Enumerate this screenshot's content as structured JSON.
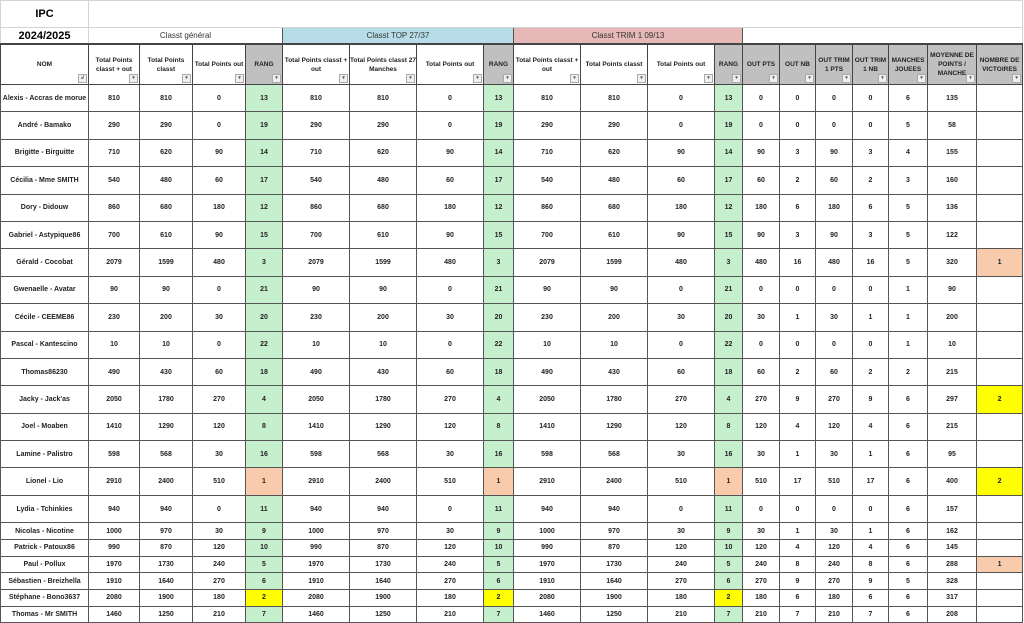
{
  "title": "IPC",
  "season": "2024/2025",
  "groups": {
    "general": "Classt général",
    "top": "Classt TOP 27/37",
    "trim": "Classt TRIM 1 09/13"
  },
  "colors": {
    "top_group": "#b7dee8",
    "trim_group": "#e6b8b7",
    "rang_cell": "#c6efce",
    "rank_1": "#f8cbad",
    "rank_2": "#ffff00",
    "header_gray": "#c0c0c0"
  },
  "headers": [
    "NOM",
    "Total Points classt + out",
    "Total Points classt",
    "Total Points out",
    "RANG",
    "Total Points classt + out",
    "Total Points classt 27 Manches",
    "Total Points out",
    "RANG",
    "Total Points classt + out",
    "Total Points classt",
    "Total Points out",
    "RANG",
    "OUT PTS",
    "OUT NB",
    "OUT TRIM 1 PTS",
    "OUT TRIM 1 NB",
    "MANCHES JOUEES",
    "MOYENNE DE POINTS / MANCHE",
    "NOMBRE DE VICTOIRES"
  ],
  "rows": [
    [
      "Alexis - Accras de morue",
      "810",
      "810",
      "0",
      "13",
      "810",
      "810",
      "0",
      "13",
      "810",
      "810",
      "0",
      "13",
      "0",
      "0",
      "0",
      "0",
      "6",
      "135",
      ""
    ],
    [
      "André - Bamako",
      "290",
      "290",
      "0",
      "19",
      "290",
      "290",
      "0",
      "19",
      "290",
      "290",
      "0",
      "19",
      "0",
      "0",
      "0",
      "0",
      "5",
      "58",
      ""
    ],
    [
      "Brigitte - Birguitte",
      "710",
      "620",
      "90",
      "14",
      "710",
      "620",
      "90",
      "14",
      "710",
      "620",
      "90",
      "14",
      "90",
      "3",
      "90",
      "3",
      "4",
      "155",
      ""
    ],
    [
      "Cécilia - Mme SMITH",
      "540",
      "480",
      "60",
      "17",
      "540",
      "480",
      "60",
      "17",
      "540",
      "480",
      "60",
      "17",
      "60",
      "2",
      "60",
      "2",
      "3",
      "160",
      ""
    ],
    [
      "Dory - Didouw",
      "860",
      "680",
      "180",
      "12",
      "860",
      "680",
      "180",
      "12",
      "860",
      "680",
      "180",
      "12",
      "180",
      "6",
      "180",
      "6",
      "5",
      "136",
      ""
    ],
    [
      "Gabriel - Astypique86",
      "700",
      "610",
      "90",
      "15",
      "700",
      "610",
      "90",
      "15",
      "700",
      "610",
      "90",
      "15",
      "90",
      "3",
      "90",
      "3",
      "5",
      "122",
      ""
    ],
    [
      "Gérald - Cocobat",
      "2079",
      "1599",
      "480",
      "3",
      "2079",
      "1599",
      "480",
      "3",
      "2079",
      "1599",
      "480",
      "3",
      "480",
      "16",
      "480",
      "16",
      "5",
      "320",
      "1"
    ],
    [
      "Gwenaelle - Avatar",
      "90",
      "90",
      "0",
      "21",
      "90",
      "90",
      "0",
      "21",
      "90",
      "90",
      "0",
      "21",
      "0",
      "0",
      "0",
      "0",
      "1",
      "90",
      ""
    ],
    [
      "Cécile - CEEME86",
      "230",
      "200",
      "30",
      "20",
      "230",
      "200",
      "30",
      "20",
      "230",
      "200",
      "30",
      "20",
      "30",
      "1",
      "30",
      "1",
      "1",
      "200",
      ""
    ],
    [
      "Pascal - Kantescino",
      "10",
      "10",
      "0",
      "22",
      "10",
      "10",
      "0",
      "22",
      "10",
      "10",
      "0",
      "22",
      "0",
      "0",
      "0",
      "0",
      "1",
      "10",
      ""
    ],
    [
      "Thomas86230",
      "490",
      "430",
      "60",
      "18",
      "490",
      "430",
      "60",
      "18",
      "490",
      "430",
      "60",
      "18",
      "60",
      "2",
      "60",
      "2",
      "2",
      "215",
      ""
    ],
    [
      "Jacky - Jack'as",
      "2050",
      "1780",
      "270",
      "4",
      "2050",
      "1780",
      "270",
      "4",
      "2050",
      "1780",
      "270",
      "4",
      "270",
      "9",
      "270",
      "9",
      "6",
      "297",
      "2"
    ],
    [
      "Joel - Moaben",
      "1410",
      "1290",
      "120",
      "8",
      "1410",
      "1290",
      "120",
      "8",
      "1410",
      "1290",
      "120",
      "8",
      "120",
      "4",
      "120",
      "4",
      "6",
      "215",
      ""
    ],
    [
      "Lamine - Palistro",
      "598",
      "568",
      "30",
      "16",
      "598",
      "568",
      "30",
      "16",
      "598",
      "568",
      "30",
      "16",
      "30",
      "1",
      "30",
      "1",
      "6",
      "95",
      ""
    ],
    [
      "Lionel - Lio",
      "2910",
      "2400",
      "510",
      "1",
      "2910",
      "2400",
      "510",
      "1",
      "2910",
      "2400",
      "510",
      "1",
      "510",
      "17",
      "510",
      "17",
      "6",
      "400",
      "2"
    ],
    [
      "Lydia - Tchinkies",
      "940",
      "940",
      "0",
      "11",
      "940",
      "940",
      "0",
      "11",
      "940",
      "940",
      "0",
      "11",
      "0",
      "0",
      "0",
      "0",
      "6",
      "157",
      ""
    ],
    [
      "Nicolas - Nicotine",
      "1000",
      "970",
      "30",
      "9",
      "1000",
      "970",
      "30",
      "9",
      "1000",
      "970",
      "30",
      "9",
      "30",
      "1",
      "30",
      "1",
      "6",
      "162",
      ""
    ],
    [
      "Patrick - Patoux86",
      "990",
      "870",
      "120",
      "10",
      "990",
      "870",
      "120",
      "10",
      "990",
      "870",
      "120",
      "10",
      "120",
      "4",
      "120",
      "4",
      "6",
      "145",
      ""
    ],
    [
      "Paul - Pollux",
      "1970",
      "1730",
      "240",
      "5",
      "1970",
      "1730",
      "240",
      "5",
      "1970",
      "1730",
      "240",
      "5",
      "240",
      "8",
      "240",
      "8",
      "6",
      "288",
      "1"
    ],
    [
      "Sébastien - Breizhella",
      "1910",
      "1640",
      "270",
      "6",
      "1910",
      "1640",
      "270",
      "6",
      "1910",
      "1640",
      "270",
      "6",
      "270",
      "9",
      "270",
      "9",
      "5",
      "328",
      ""
    ],
    [
      "Stéphane - Bono3637",
      "2080",
      "1900",
      "180",
      "2",
      "2080",
      "1900",
      "180",
      "2",
      "2080",
      "1900",
      "180",
      "2",
      "180",
      "6",
      "180",
      "6",
      "6",
      "317",
      ""
    ],
    [
      "Thomas - Mr SMITH",
      "1460",
      "1250",
      "210",
      "7",
      "1460",
      "1250",
      "210",
      "7",
      "1460",
      "1250",
      "210",
      "7",
      "210",
      "7",
      "210",
      "7",
      "6",
      "208",
      ""
    ]
  ]
}
